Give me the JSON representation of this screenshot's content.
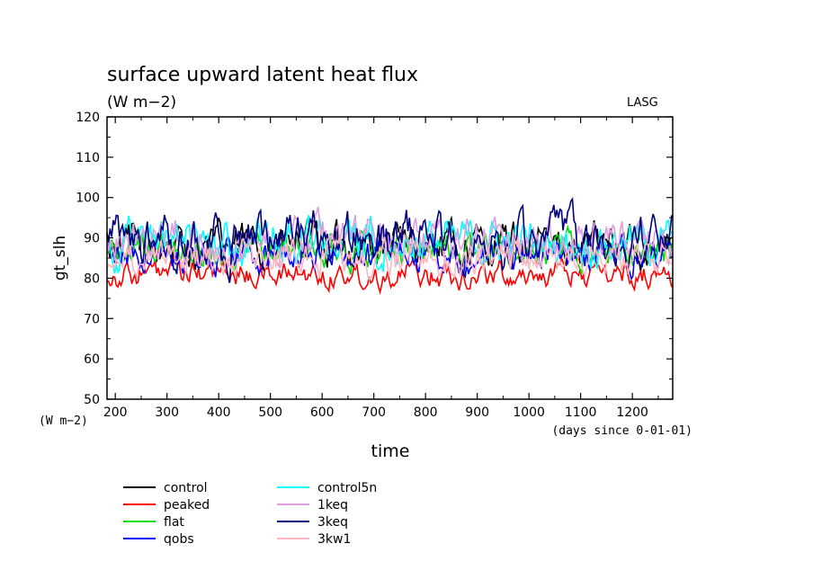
{
  "chart_data": {
    "type": "line",
    "title": "surface upward latent heat flux",
    "subtitle": "(W m−2)",
    "watermark": "LASG",
    "xlabel": "time",
    "x_unit_label": "(days since 0-01-01)",
    "ylabel": "gt_slh",
    "y_unit_label": "(W m−2)",
    "xlim": [
      184,
      1278
    ],
    "ylim": [
      50,
      120
    ],
    "x_ticks": [
      200,
      300,
      400,
      500,
      600,
      700,
      800,
      900,
      1000,
      1100,
      1200
    ],
    "y_ticks": [
      50,
      60,
      70,
      80,
      90,
      100,
      110,
      120
    ],
    "grid": false,
    "legend_position": "below plot, two columns",
    "series": [
      {
        "name": "control",
        "color": "#000000",
        "mean": 88,
        "amp": 5.0
      },
      {
        "name": "peaked",
        "color": "#ff0000",
        "mean": 81,
        "amp": 3.0
      },
      {
        "name": "flat",
        "color": "#00dd00",
        "mean": 87,
        "amp": 4.0
      },
      {
        "name": "qobs",
        "color": "#0000ff",
        "mean": 86,
        "amp": 4.0
      },
      {
        "name": "control5n",
        "color": "#00ffff",
        "mean": 89,
        "amp": 5.0
      },
      {
        "name": "1keq",
        "color": "#dda0dd",
        "mean": 90,
        "amp": 5.0
      },
      {
        "name": "3keq",
        "color": "#00007f",
        "mean": 89,
        "amp": 6.0
      },
      {
        "name": "3kw1",
        "color": "#ffb6c1",
        "mean": 85,
        "amp": 4.0
      }
    ]
  }
}
